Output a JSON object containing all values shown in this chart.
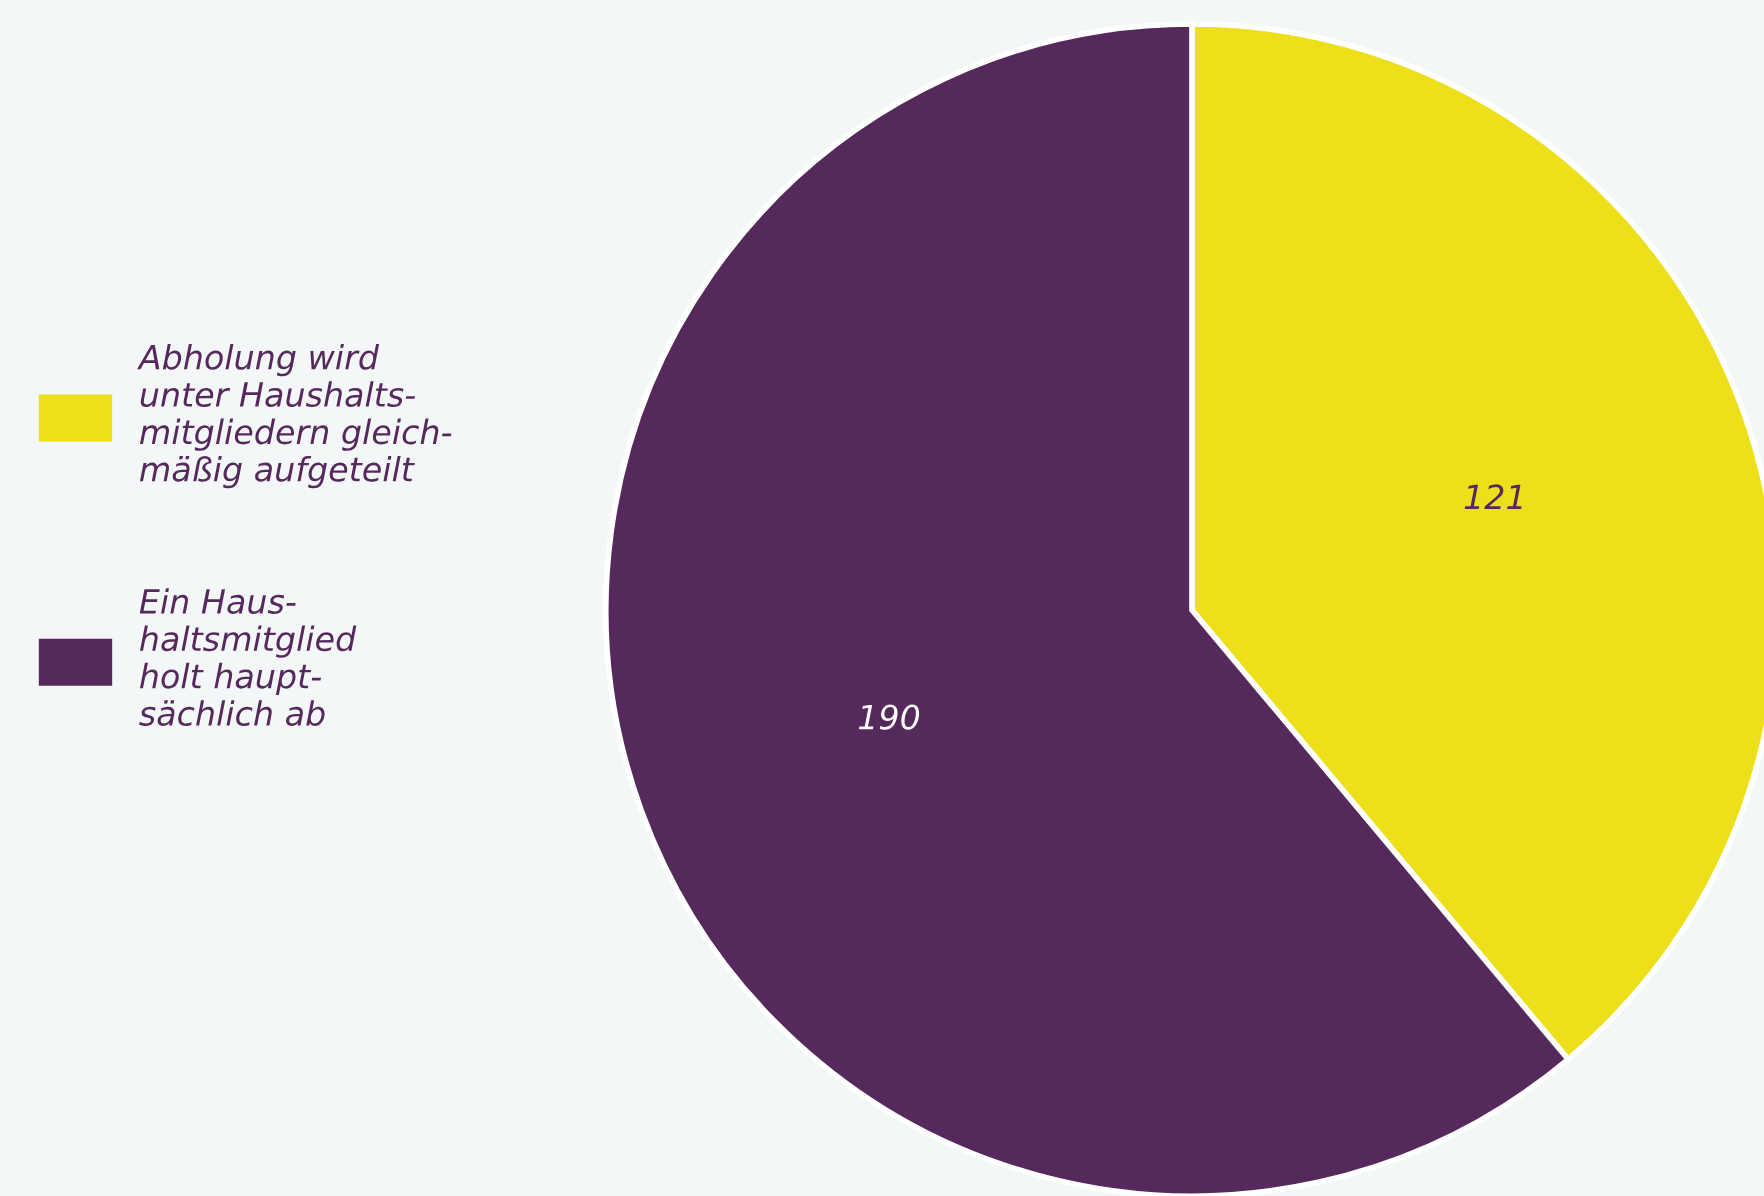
{
  "chart_data": {
    "type": "pie",
    "categories": [
      "Abholung wird\nunter Haushalts-\nmitgliedern gleich-\nmäßig aufgeteilt",
      "Ein Haus-\nhaltsmitglied\nholt haupt-\nsächlich ab"
    ],
    "values": [
      121,
      190
    ],
    "colors": [
      "#ede01a",
      "#56295c"
    ],
    "data_labels": true,
    "legend": "left"
  }
}
